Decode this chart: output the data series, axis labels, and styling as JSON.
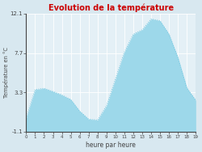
{
  "title": "Evolution de la température",
  "xlabel": "heure par heure",
  "ylabel": "Température en °C",
  "background_color": "#d8e8f0",
  "plot_background": "#e4f0f6",
  "line_color": "#6ec6e0",
  "fill_color": "#9dd8ea",
  "title_color": "#cc0000",
  "axis_color": "#444444",
  "grid_color": "#ffffff",
  "ylim": [
    -1.1,
    12.1
  ],
  "xlim": [
    0,
    19
  ],
  "yticks": [
    -1.1,
    3.3,
    7.7,
    12.1
  ],
  "ytick_labels": [
    "-1.1",
    "3.3",
    "7.7",
    "12.1"
  ],
  "xticks": [
    0,
    1,
    2,
    3,
    4,
    5,
    6,
    7,
    8,
    9,
    10,
    11,
    12,
    13,
    14,
    15,
    16,
    17,
    18,
    19
  ],
  "hours": [
    0,
    1,
    2,
    3,
    4,
    5,
    6,
    7,
    8,
    9,
    10,
    11,
    12,
    13,
    14,
    15,
    16,
    17,
    18,
    19
  ],
  "temperatures": [
    0.4,
    3.6,
    3.75,
    3.4,
    3.0,
    2.5,
    1.2,
    0.3,
    0.2,
    1.8,
    4.8,
    7.8,
    9.8,
    10.3,
    11.5,
    11.3,
    9.8,
    7.2,
    3.8,
    2.4
  ]
}
